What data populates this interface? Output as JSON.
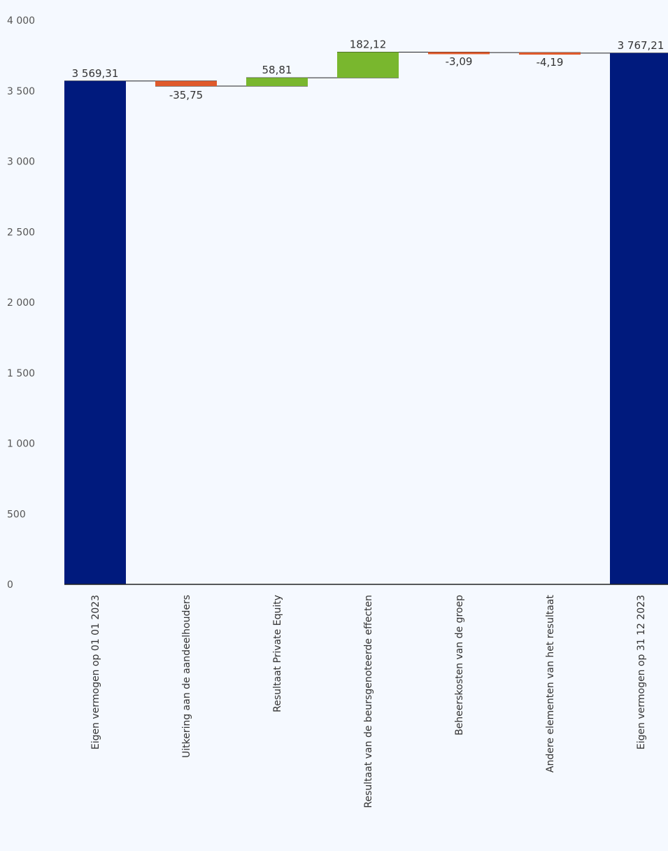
{
  "chart_data": {
    "type": "waterfall",
    "title": "",
    "xlabel": "",
    "ylabel": "",
    "ylim": [
      0,
      4000
    ],
    "yticks": [
      0,
      500,
      1000,
      1500,
      2000,
      2500,
      3000,
      3500,
      4000
    ],
    "ytick_labels": [
      "0",
      "500",
      "1 000",
      "1 500",
      "2 000",
      "2 500",
      "3 000",
      "3 500",
      "4 000"
    ],
    "grid": false,
    "legend": "none",
    "categories": [
      "Eigen vermogen op 01 01 2023",
      "Uitkering aan de aandeelhouders",
      "Resultaat Private Equity",
      "Resultaat van de beursgenoteerde effecten",
      "Beheerskosten van de groep",
      "Andere elementen van het resultaat",
      "Eigen vermogen op 31 12 2023"
    ],
    "kinds": [
      "total",
      "delta",
      "delta",
      "delta",
      "delta",
      "delta",
      "total"
    ],
    "values": [
      3569.31,
      -35.75,
      58.81,
      182.12,
      -3.09,
      -4.19,
      3767.21
    ],
    "value_labels": [
      "3 569,31",
      "-35,75",
      "58,81",
      "182,12",
      "-3,09",
      "-4,19",
      "3 767,21"
    ],
    "colors": {
      "total": "#001a7d",
      "increase": "#79b72e",
      "decrease": "#e05a2b"
    }
  }
}
